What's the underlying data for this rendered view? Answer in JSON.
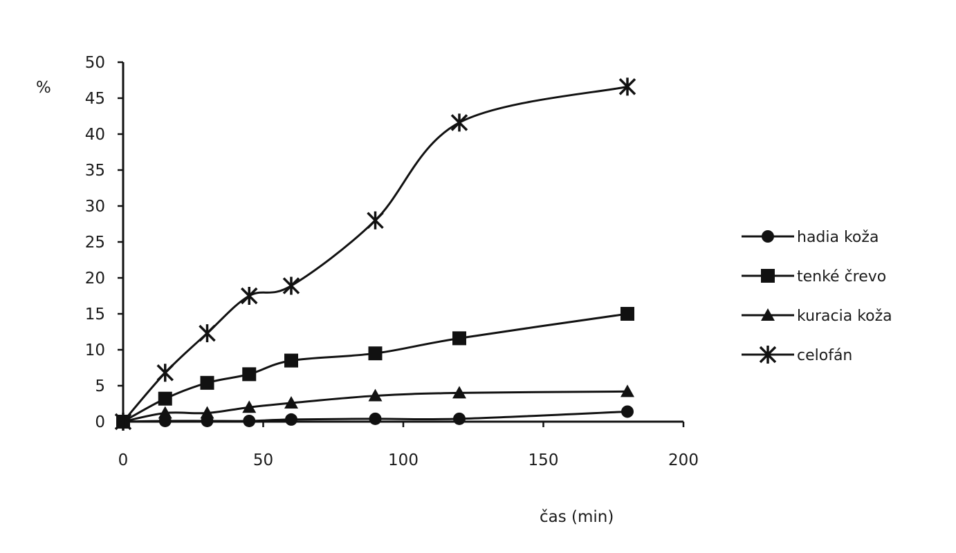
{
  "chart_data": {
    "type": "line",
    "title": "",
    "xlabel": "čas (min)",
    "ylabel": "%",
    "xlim": [
      0,
      200
    ],
    "ylim": [
      0,
      50
    ],
    "x_ticks": [
      0,
      50,
      100,
      150,
      200
    ],
    "y_ticks": [
      0,
      5,
      10,
      15,
      20,
      25,
      30,
      35,
      40,
      45,
      50
    ],
    "grid": false,
    "legend_position": "right",
    "x": [
      0,
      15,
      30,
      45,
      60,
      90,
      120,
      180
    ],
    "series": [
      {
        "name": "hadia koža",
        "marker": "circle",
        "values": [
          0,
          0.1,
          0.1,
          0.1,
          0.3,
          0.4,
          0.4,
          1.4
        ]
      },
      {
        "name": "tenké črevo",
        "marker": "square",
        "values": [
          0,
          3.2,
          5.4,
          6.6,
          8.5,
          9.5,
          11.6,
          15.0
        ]
      },
      {
        "name": "kuracia koža",
        "marker": "triangle",
        "values": [
          0,
          1.2,
          1.2,
          2.0,
          2.6,
          3.6,
          4.0,
          4.2
        ]
      },
      {
        "name": "celofán",
        "marker": "star",
        "values": [
          0,
          6.8,
          12.3,
          17.5,
          18.9,
          28.0,
          41.6,
          46.6
        ]
      }
    ]
  }
}
